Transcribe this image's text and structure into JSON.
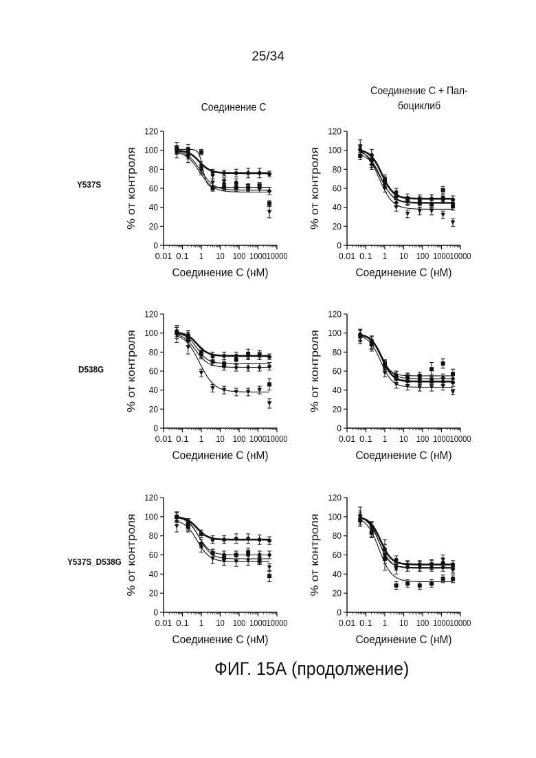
{
  "page_number": "25/34",
  "column_titles": {
    "left": "Соединение С",
    "right": [
      "Соединение С + Пал-",
      "боциклиб"
    ]
  },
  "row_labels": [
    "Y537S",
    "D538G",
    "Y537S_D538G"
  ],
  "figure_caption": "ФИГ. 15А (продолжение)",
  "chart_data": [
    {
      "type": "scatter",
      "row": "Y537S",
      "column": "Соединение С",
      "xlabel": "Соединение С (нМ)",
      "ylabel": "% от контроля",
      "x_scale": "log",
      "xlim": [
        0.01,
        10000
      ],
      "ylim": [
        0,
        120
      ],
      "x_ticks": [
        "0.01",
        "0.1",
        "1",
        "10",
        "100",
        "1000",
        "10000"
      ],
      "y_ticks": [
        "0",
        "20",
        "40",
        "60",
        "80",
        "100",
        "120"
      ],
      "x": [
        0.05,
        0.2,
        1,
        4,
        16,
        70,
        300,
        1200,
        4000
      ],
      "series": [
        {
          "marker": "circle",
          "bold": true,
          "values": [
            100,
            98,
            84,
            77,
            76,
            76,
            76,
            76,
            75
          ],
          "errors": [
            4,
            4,
            4,
            3,
            3,
            4,
            5,
            5,
            3
          ],
          "curve": {
            "top": 100,
            "bottom": 76,
            "ic50": 0.8,
            "hill": 1.5
          }
        },
        {
          "marker": "square",
          "values": [
            102,
            101,
            98,
            60,
            61,
            61,
            61,
            63,
            44
          ],
          "errors": [
            6,
            5,
            3,
            3,
            3,
            4,
            4,
            3,
            3
          ],
          "curve": {
            "top": 101,
            "bottom": 61,
            "ic50": 1.2,
            "hill": 4
          }
        },
        {
          "marker": "triangle-down",
          "values": [
            97,
            92,
            78,
            66,
            67,
            63,
            60,
            60,
            35
          ],
          "errors": [
            5,
            5,
            4,
            4,
            4,
            4,
            4,
            4,
            6
          ],
          "curve": {
            "top": 99,
            "bottom": 56,
            "ic50": 0.8,
            "hill": 1.2
          }
        },
        {
          "marker": "diamond",
          "values": [
            101,
            95,
            80,
            74,
            65,
            66,
            60,
            60,
            57
          ],
          "errors": [
            4,
            4,
            4,
            4,
            4,
            4,
            4,
            4,
            4
          ],
          "curve": {
            "top": 100,
            "bottom": 58,
            "ic50": 0.9,
            "hill": 1.2
          }
        }
      ]
    },
    {
      "type": "scatter",
      "row": "Y537S",
      "column": "Соединение С + Палбоциклиб",
      "xlabel": "Соединение С (нМ)",
      "ylabel": "% от контроля",
      "x_scale": "log",
      "xlim": [
        0.01,
        10000
      ],
      "ylim": [
        0,
        120
      ],
      "x_ticks": [
        "0.01",
        "0.1",
        "1",
        "10",
        "100",
        "1000",
        "10000"
      ],
      "y_ticks": [
        "0",
        "20",
        "40",
        "60",
        "80",
        "100",
        "120"
      ],
      "x": [
        0.05,
        0.2,
        1,
        4,
        16,
        70,
        300,
        1200,
        4000
      ],
      "series": [
        {
          "marker": "circle",
          "bold": true,
          "values": [
            101,
            95,
            70,
            56,
            50,
            49,
            49,
            50,
            48
          ],
          "errors": [
            5,
            6,
            4,
            4,
            4,
            4,
            4,
            4,
            4
          ],
          "curve": {
            "top": 101,
            "bottom": 49,
            "ic50": 0.7,
            "hill": 1.4
          }
        },
        {
          "marker": "square",
          "values": [
            94,
            90,
            68,
            52,
            47,
            44,
            43,
            58,
            41
          ],
          "errors": [
            4,
            5,
            4,
            4,
            4,
            4,
            4,
            4,
            4
          ],
          "curve": {
            "top": 97,
            "bottom": 45,
            "ic50": 0.6,
            "hill": 1.3
          }
        },
        {
          "marker": "triangle-down",
          "values": [
            103,
            88,
            60,
            40,
            33,
            36,
            36,
            32,
            24
          ],
          "errors": [
            8,
            6,
            4,
            4,
            4,
            4,
            4,
            4,
            4
          ],
          "curve": {
            "top": 103,
            "bottom": 38,
            "ic50": 0.5,
            "hill": 1.2
          }
        },
        {
          "marker": "diamond",
          "values": [
            100,
            85,
            64,
            45,
            46,
            47,
            49,
            48,
            44
          ],
          "errors": [
            5,
            5,
            4,
            4,
            4,
            4,
            4,
            4,
            4
          ],
          "curve": {
            "top": 100,
            "bottom": 44,
            "ic50": 0.6,
            "hill": 1.3
          }
        }
      ]
    },
    {
      "type": "scatter",
      "row": "D538G",
      "column": "Соединение С",
      "xlabel": "Соединение С (нМ)",
      "ylabel": "% от контроля",
      "x_scale": "log",
      "xlim": [
        0.01,
        10000
      ],
      "ylim": [
        0,
        120
      ],
      "x_ticks": [
        "0.01",
        "0.1",
        "1",
        "10",
        "100",
        "1000",
        "10000"
      ],
      "y_ticks": [
        "0",
        "20",
        "40",
        "60",
        "80",
        "100",
        "120"
      ],
      "x": [
        0.05,
        0.2,
        1,
        4,
        16,
        70,
        300,
        1200,
        4000
      ],
      "series": [
        {
          "marker": "circle",
          "bold": true,
          "values": [
            102,
            98,
            80,
            76,
            76,
            76,
            76,
            76,
            75
          ],
          "errors": [
            6,
            5,
            4,
            4,
            4,
            4,
            4,
            4,
            3
          ],
          "curve": {
            "top": 101,
            "bottom": 76,
            "ic50": 0.6,
            "hill": 1.5
          }
        },
        {
          "marker": "square",
          "values": [
            100,
            96,
            78,
            70,
            68,
            72,
            78,
            77,
            46
          ],
          "errors": [
            6,
            5,
            4,
            4,
            4,
            5,
            5,
            5,
            6
          ],
          "curve": {
            "top": 100,
            "bottom": 68,
            "ic50": 0.6,
            "hill": 1.5
          }
        },
        {
          "marker": "triangle-down",
          "values": [
            98,
            85,
            58,
            42,
            40,
            38,
            38,
            40,
            26
          ],
          "errors": [
            8,
            7,
            4,
            4,
            4,
            4,
            4,
            4,
            5
          ],
          "curve": {
            "top": 100,
            "bottom": 38,
            "ic50": 0.8,
            "hill": 1.1
          }
        },
        {
          "marker": "diamond",
          "values": [
            101,
            92,
            77,
            70,
            65,
            64,
            64,
            64,
            65
          ],
          "errors": [
            5,
            5,
            4,
            4,
            4,
            4,
            4,
            4,
            4
          ],
          "curve": {
            "top": 100,
            "bottom": 64,
            "ic50": 0.5,
            "hill": 1.3
          }
        }
      ]
    },
    {
      "type": "scatter",
      "row": "D538G",
      "column": "Соединение С + Палбоциклиб",
      "xlabel": "Соединение С (нМ)",
      "ylabel": "% от контроля",
      "x_scale": "log",
      "xlim": [
        0.01,
        10000
      ],
      "ylim": [
        0,
        120
      ],
      "x_ticks": [
        "0.01",
        "0.1",
        "1",
        "10",
        "100",
        "1000",
        "10000"
      ],
      "y_ticks": [
        "0",
        "20",
        "40",
        "60",
        "80",
        "100",
        "120"
      ],
      "x": [
        0.05,
        0.2,
        1,
        4,
        16,
        70,
        300,
        1200,
        4000
      ],
      "series": [
        {
          "marker": "circle",
          "bold": true,
          "values": [
            98,
            90,
            65,
            52,
            50,
            50,
            50,
            49,
            48
          ],
          "errors": [
            6,
            6,
            4,
            4,
            4,
            4,
            4,
            4,
            4
          ],
          "curve": {
            "top": 99,
            "bottom": 49,
            "ic50": 0.7,
            "hill": 1.5
          }
        },
        {
          "marker": "square",
          "values": [
            97,
            88,
            68,
            55,
            54,
            55,
            62,
            68,
            57
          ],
          "errors": [
            6,
            5,
            4,
            4,
            4,
            4,
            7,
            5,
            5
          ],
          "curve": {
            "top": 98,
            "bottom": 55,
            "ic50": 0.6,
            "hill": 1.6
          }
        },
        {
          "marker": "triangle-down",
          "values": [
            96,
            87,
            58,
            46,
            44,
            43,
            43,
            44,
            38
          ],
          "errors": [
            7,
            6,
            4,
            4,
            4,
            4,
            4,
            4,
            3
          ],
          "curve": {
            "top": 98,
            "bottom": 43,
            "ic50": 0.6,
            "hill": 1.4
          }
        },
        {
          "marker": "diamond",
          "values": [
            99,
            92,
            67,
            56,
            53,
            52,
            52,
            53,
            52
          ],
          "errors": [
            5,
            5,
            4,
            4,
            4,
            4,
            4,
            4,
            4
          ],
          "curve": {
            "top": 99,
            "bottom": 52,
            "ic50": 0.7,
            "hill": 1.5
          }
        }
      ]
    },
    {
      "type": "scatter",
      "row": "Y537S_D538G",
      "column": "Соединение С",
      "xlabel": "Соединение С (нМ)",
      "ylabel": "% от контроля",
      "x_scale": "log",
      "xlim": [
        0.01,
        10000
      ],
      "ylim": [
        0,
        120
      ],
      "x_ticks": [
        "0.01",
        "0.1",
        "1",
        "10",
        "100",
        "1000",
        "10000"
      ],
      "y_ticks": [
        "0",
        "20",
        "40",
        "60",
        "80",
        "100",
        "120"
      ],
      "x": [
        0.05,
        0.2,
        1,
        4,
        16,
        70,
        300,
        1200,
        4000
      ],
      "series": [
        {
          "marker": "circle",
          "bold": true,
          "values": [
            99,
            93,
            82,
            76,
            76,
            77,
            77,
            76,
            75
          ],
          "errors": [
            5,
            5,
            4,
            4,
            4,
            5,
            5,
            5,
            4
          ],
          "curve": {
            "top": 100,
            "bottom": 76,
            "ic50": 0.6,
            "hill": 1.5
          }
        },
        {
          "marker": "square",
          "values": [
            100,
            90,
            82,
            62,
            57,
            60,
            63,
            54,
            38
          ],
          "errors": [
            5,
            5,
            4,
            4,
            4,
            4,
            4,
            4,
            6
          ],
          "curve": {
            "top": 100,
            "bottom": 56,
            "ic50": 0.8,
            "hill": 1.4
          }
        },
        {
          "marker": "triangle-down",
          "values": [
            90,
            89,
            68,
            56,
            54,
            53,
            54,
            56,
            47
          ],
          "errors": [
            6,
            5,
            5,
            5,
            5,
            5,
            5,
            5,
            4
          ],
          "curve": {
            "top": 97,
            "bottom": 53,
            "ic50": 0.6,
            "hill": 1.3
          }
        },
        {
          "marker": "diamond",
          "values": [
            100,
            92,
            72,
            62,
            60,
            60,
            60,
            60,
            60
          ],
          "errors": [
            5,
            5,
            4,
            4,
            4,
            4,
            4,
            4,
            4
          ],
          "curve": {
            "top": 100,
            "bottom": 60,
            "ic50": 0.7,
            "hill": 1.4
          }
        }
      ]
    },
    {
      "type": "scatter",
      "row": "Y537S_D538G",
      "column": "Соединение С + Палбоциклиб",
      "xlabel": "Соединение С (нМ)",
      "ylabel": "% от контроля",
      "x_scale": "log",
      "xlim": [
        0.01,
        10000
      ],
      "ylim": [
        0,
        120
      ],
      "x_ticks": [
        "0.01",
        "0.1",
        "1",
        "10",
        "100",
        "1000",
        "10000"
      ],
      "y_ticks": [
        "0",
        "20",
        "40",
        "60",
        "80",
        "100",
        "120"
      ],
      "x": [
        0.05,
        0.2,
        1,
        4,
        16,
        70,
        300,
        1200,
        4000
      ],
      "series": [
        {
          "marker": "circle",
          "bold": true,
          "values": [
            98,
            85,
            66,
            55,
            50,
            50,
            50,
            52,
            50
          ],
          "errors": [
            6,
            6,
            5,
            4,
            4,
            4,
            4,
            4,
            4
          ],
          "curve": {
            "top": 100,
            "bottom": 50,
            "ic50": 0.6,
            "hill": 1.5
          }
        },
        {
          "marker": "square",
          "values": [
            96,
            83,
            56,
            28,
            30,
            28,
            30,
            35,
            35
          ],
          "errors": [
            6,
            5,
            5,
            4,
            4,
            4,
            4,
            4,
            4
          ],
          "curve": {
            "top": 100,
            "bottom": 32,
            "ic50": 0.5,
            "hill": 1.3
          }
        },
        {
          "marker": "triangle-down",
          "values": [
            100,
            88,
            60,
            45,
            48,
            48,
            50,
            55,
            46
          ],
          "errors": [
            10,
            6,
            16,
            5,
            5,
            5,
            5,
            5,
            5
          ],
          "curve": {
            "top": 100,
            "bottom": 47,
            "ic50": 0.5,
            "hill": 1.6
          }
        },
        {
          "marker": "diamond",
          "values": [
            101,
            90,
            60,
            48,
            47,
            47,
            47,
            47,
            45
          ],
          "errors": [
            5,
            5,
            4,
            4,
            4,
            4,
            4,
            4,
            4
          ],
          "curve": {
            "top": 101,
            "bottom": 46,
            "ic50": 0.5,
            "hill": 1.4
          }
        }
      ]
    }
  ]
}
